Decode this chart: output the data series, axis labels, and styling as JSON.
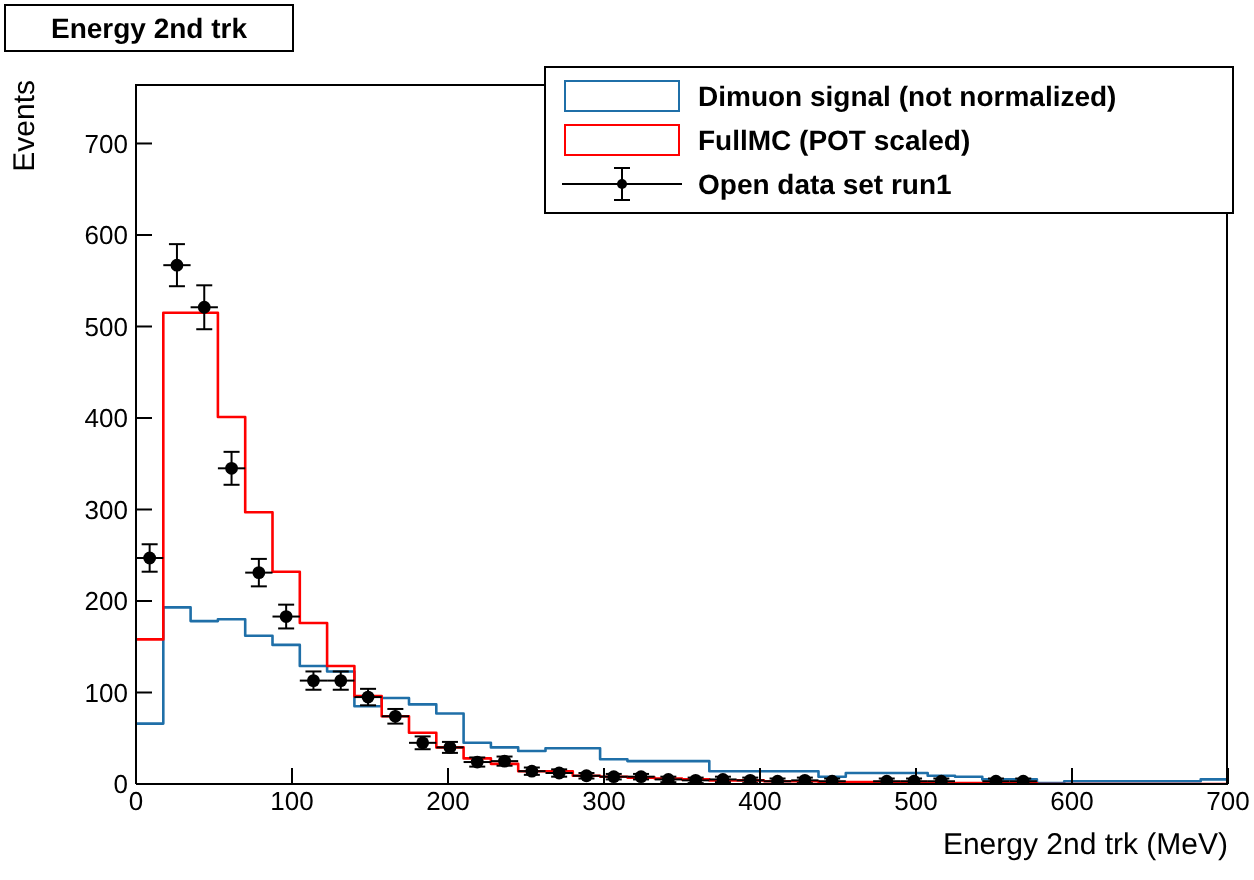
{
  "chart_data": {
    "type": "histogram",
    "title": "Energy 2nd trk",
    "xlabel": "Energy 2nd trk (MeV)",
    "ylabel": "Events",
    "bins": [
      0,
      17.5,
      35,
      52.5,
      70,
      87.5,
      105,
      122.5,
      140,
      157.5,
      175,
      192.5,
      210,
      227.5,
      245,
      262.5,
      280,
      297.5,
      315,
      332.5,
      350,
      367.5,
      385,
      402.5,
      420,
      437.5,
      455,
      472.5,
      490,
      507.5,
      525,
      542.5,
      560,
      577.5,
      595,
      612.5,
      630,
      647.5,
      665,
      682.5,
      700
    ],
    "series": [
      {
        "name": "Dimuon signal (not normalized)",
        "color": "#1f6fa8",
        "values": [
          66,
          193,
          178,
          180,
          162,
          152,
          129,
          123,
          85,
          94,
          87,
          77,
          45,
          40,
          36,
          39,
          39,
          27,
          25,
          25,
          25,
          14,
          14,
          14,
          14,
          8,
          12,
          12,
          12,
          9,
          8,
          5,
          5,
          1,
          3,
          3,
          3,
          3,
          3,
          5
        ]
      },
      {
        "name": "FullMC (POT scaled)",
        "color": "#ff0000",
        "values": [
          158,
          515,
          515,
          401,
          297,
          232,
          176,
          129,
          96,
          74,
          56,
          40,
          28,
          22,
          14,
          14,
          9,
          8,
          7,
          6,
          5,
          4,
          4,
          3,
          3,
          2,
          2,
          2,
          2,
          1,
          1,
          1,
          1,
          0,
          0,
          0,
          0,
          0,
          0,
          0
        ]
      },
      {
        "name": "Open data set run1",
        "type": "scatter",
        "color": "#000000",
        "marker": "circle",
        "x": [
          8.75,
          26.25,
          43.75,
          61.25,
          78.75,
          96.25,
          113.75,
          131.25,
          148.75,
          166.25,
          183.75,
          201.25,
          218.75,
          236.25,
          253.75,
          271.25,
          288.75,
          306.25,
          323.75,
          341.25,
          358.75,
          376.25,
          393.75,
          411.25,
          428.75,
          446.25,
          481.25,
          498.75,
          516.25,
          551.25,
          568.75
        ],
        "values": [
          247,
          567,
          521,
          345,
          231,
          183,
          113,
          113,
          95,
          74,
          45,
          40,
          24,
          25,
          14,
          12,
          9,
          8,
          8,
          5,
          4,
          5,
          4,
          3,
          4,
          3,
          3,
          3,
          3,
          3,
          3
        ],
        "errors": [
          15,
          23,
          24,
          18,
          15,
          13,
          10,
          10,
          9,
          8,
          7,
          6,
          5,
          5,
          4,
          4,
          3,
          3,
          3,
          3,
          3,
          3,
          3,
          3,
          3,
          3,
          3,
          3,
          3,
          3,
          3
        ],
        "xerrors": [
          8.75,
          8.75,
          8.75,
          8.75,
          8.75,
          8.75,
          8.75,
          8.75,
          8.75,
          8.75,
          8.75,
          8.75,
          8.75,
          8.75,
          8.75,
          8.75,
          8.75,
          8.75,
          8.75,
          8.75,
          8.75,
          8.75,
          8.75,
          8.75,
          8.75,
          8.75,
          8.75,
          8.75,
          8.75,
          8.75,
          8.75
        ]
      }
    ],
    "xlim": [
      0,
      700
    ],
    "xticks": [
      0,
      100,
      200,
      300,
      400,
      500,
      600,
      700
    ],
    "ylim": [
      0,
      765
    ],
    "yticks": [
      0,
      100,
      200,
      300,
      400,
      500,
      600,
      700
    ],
    "grid": false,
    "legend": "top right"
  }
}
